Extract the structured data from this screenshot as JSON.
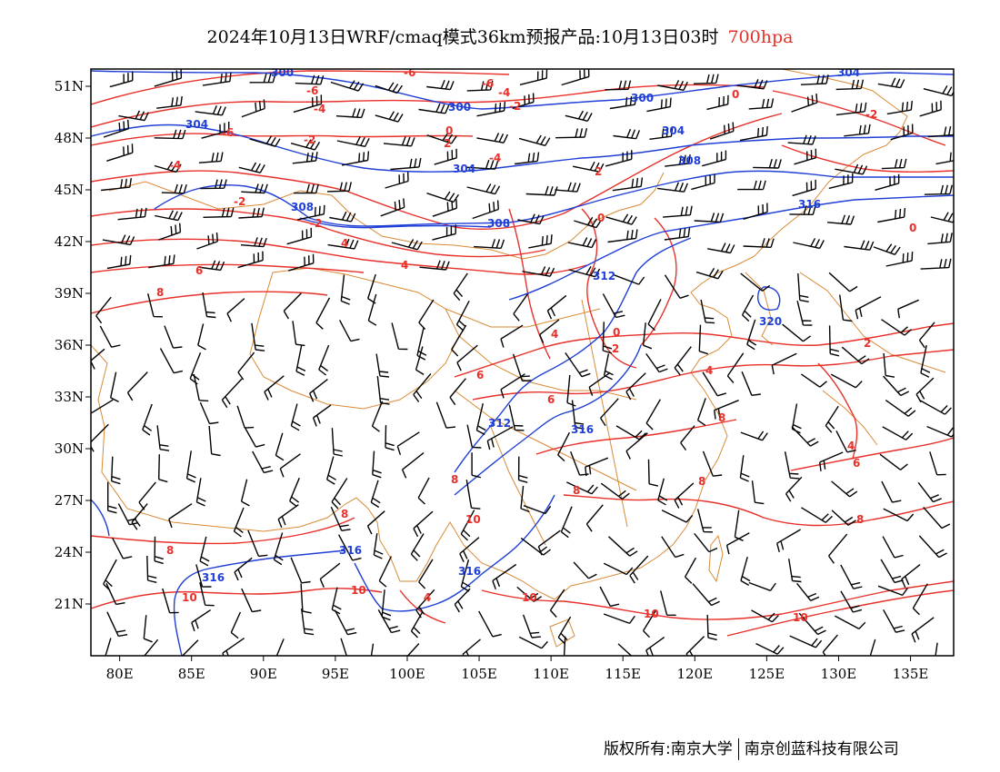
{
  "title": {
    "main": "2024年10月13日WRF/cmaq模式36km预报产品:10月13日03时",
    "level": "700hpa"
  },
  "credit": {
    "owner": "版权所有:南京大学",
    "partner": "南京创蓝科技有限公司"
  },
  "map": {
    "lon_range": [
      78,
      138
    ],
    "lat_range": [
      18,
      52
    ],
    "lon_ticks": [
      "80E",
      "85E",
      "90E",
      "95E",
      "100E",
      "105E",
      "110E",
      "115E",
      "120E",
      "125E",
      "130E",
      "135E"
    ],
    "lat_ticks": [
      "21N",
      "24N",
      "27N",
      "30N",
      "33N",
      "36N",
      "39N",
      "42N",
      "45N",
      "48N",
      "51N"
    ],
    "colors": {
      "temperature": "#e8302a",
      "height": "#1f3fd6",
      "border": "#d98a35",
      "wind": "#000000"
    },
    "height_labels": [
      "300",
      "304",
      "308",
      "312",
      "316",
      "320"
    ],
    "temperature_labels": [
      "-6",
      "-4",
      "-2",
      "0",
      "2",
      "4",
      "6",
      "8",
      "10"
    ]
  }
}
